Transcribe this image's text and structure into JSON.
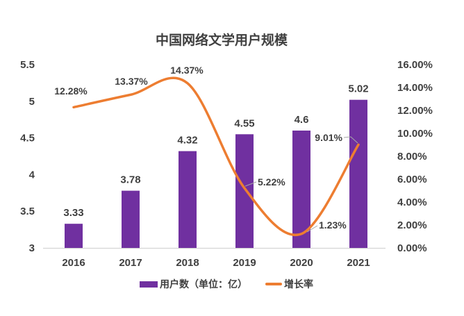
{
  "title": "中国网络文学用户规模",
  "colors": {
    "bar": "#7030A0",
    "line": "#ED7D31",
    "text": "#3F3F3F",
    "axis_line": "#D9D9D9",
    "leader_line": "#A6A6A6"
  },
  "legend": {
    "items": [
      {
        "label": "用户数（单位：亿）",
        "marker": "bar"
      },
      {
        "label": "增长率",
        "marker": "line"
      }
    ]
  },
  "chart_data": {
    "type": "combo-bar-line",
    "title": "中国网络文学用户规模",
    "categories": [
      "2016",
      "2017",
      "2018",
      "2019",
      "2020",
      "2021"
    ],
    "series": [
      {
        "name": "用户数（单位：亿）",
        "type": "bar",
        "axis": "left",
        "values": [
          3.33,
          3.78,
          4.32,
          4.55,
          4.6,
          5.02
        ],
        "data_labels": [
          "3.33",
          "3.78",
          "4.32",
          "4.55",
          "4.6",
          "5.02"
        ]
      },
      {
        "name": "增长率",
        "type": "line",
        "axis": "right",
        "values": [
          12.28,
          13.37,
          14.37,
          5.22,
          1.23,
          9.01
        ],
        "data_labels": [
          "12.28%",
          "13.37%",
          "14.37%",
          "5.22%",
          "1.23%",
          "9.01%"
        ]
      }
    ],
    "left_axis": {
      "min": 3,
      "max": 5.5,
      "step": 0.5,
      "tick_labels": [
        "5.5",
        "5",
        "4.5",
        "4",
        "3.5",
        "3"
      ]
    },
    "right_axis": {
      "min": 0,
      "max": 16,
      "step": 2,
      "tick_labels": [
        "16.00%",
        "14.00%",
        "12.00%",
        "10.00%",
        "8.00%",
        "6.00%",
        "4.00%",
        "2.00%",
        "0.00%"
      ]
    },
    "grid": false,
    "legend_position": "bottom"
  }
}
